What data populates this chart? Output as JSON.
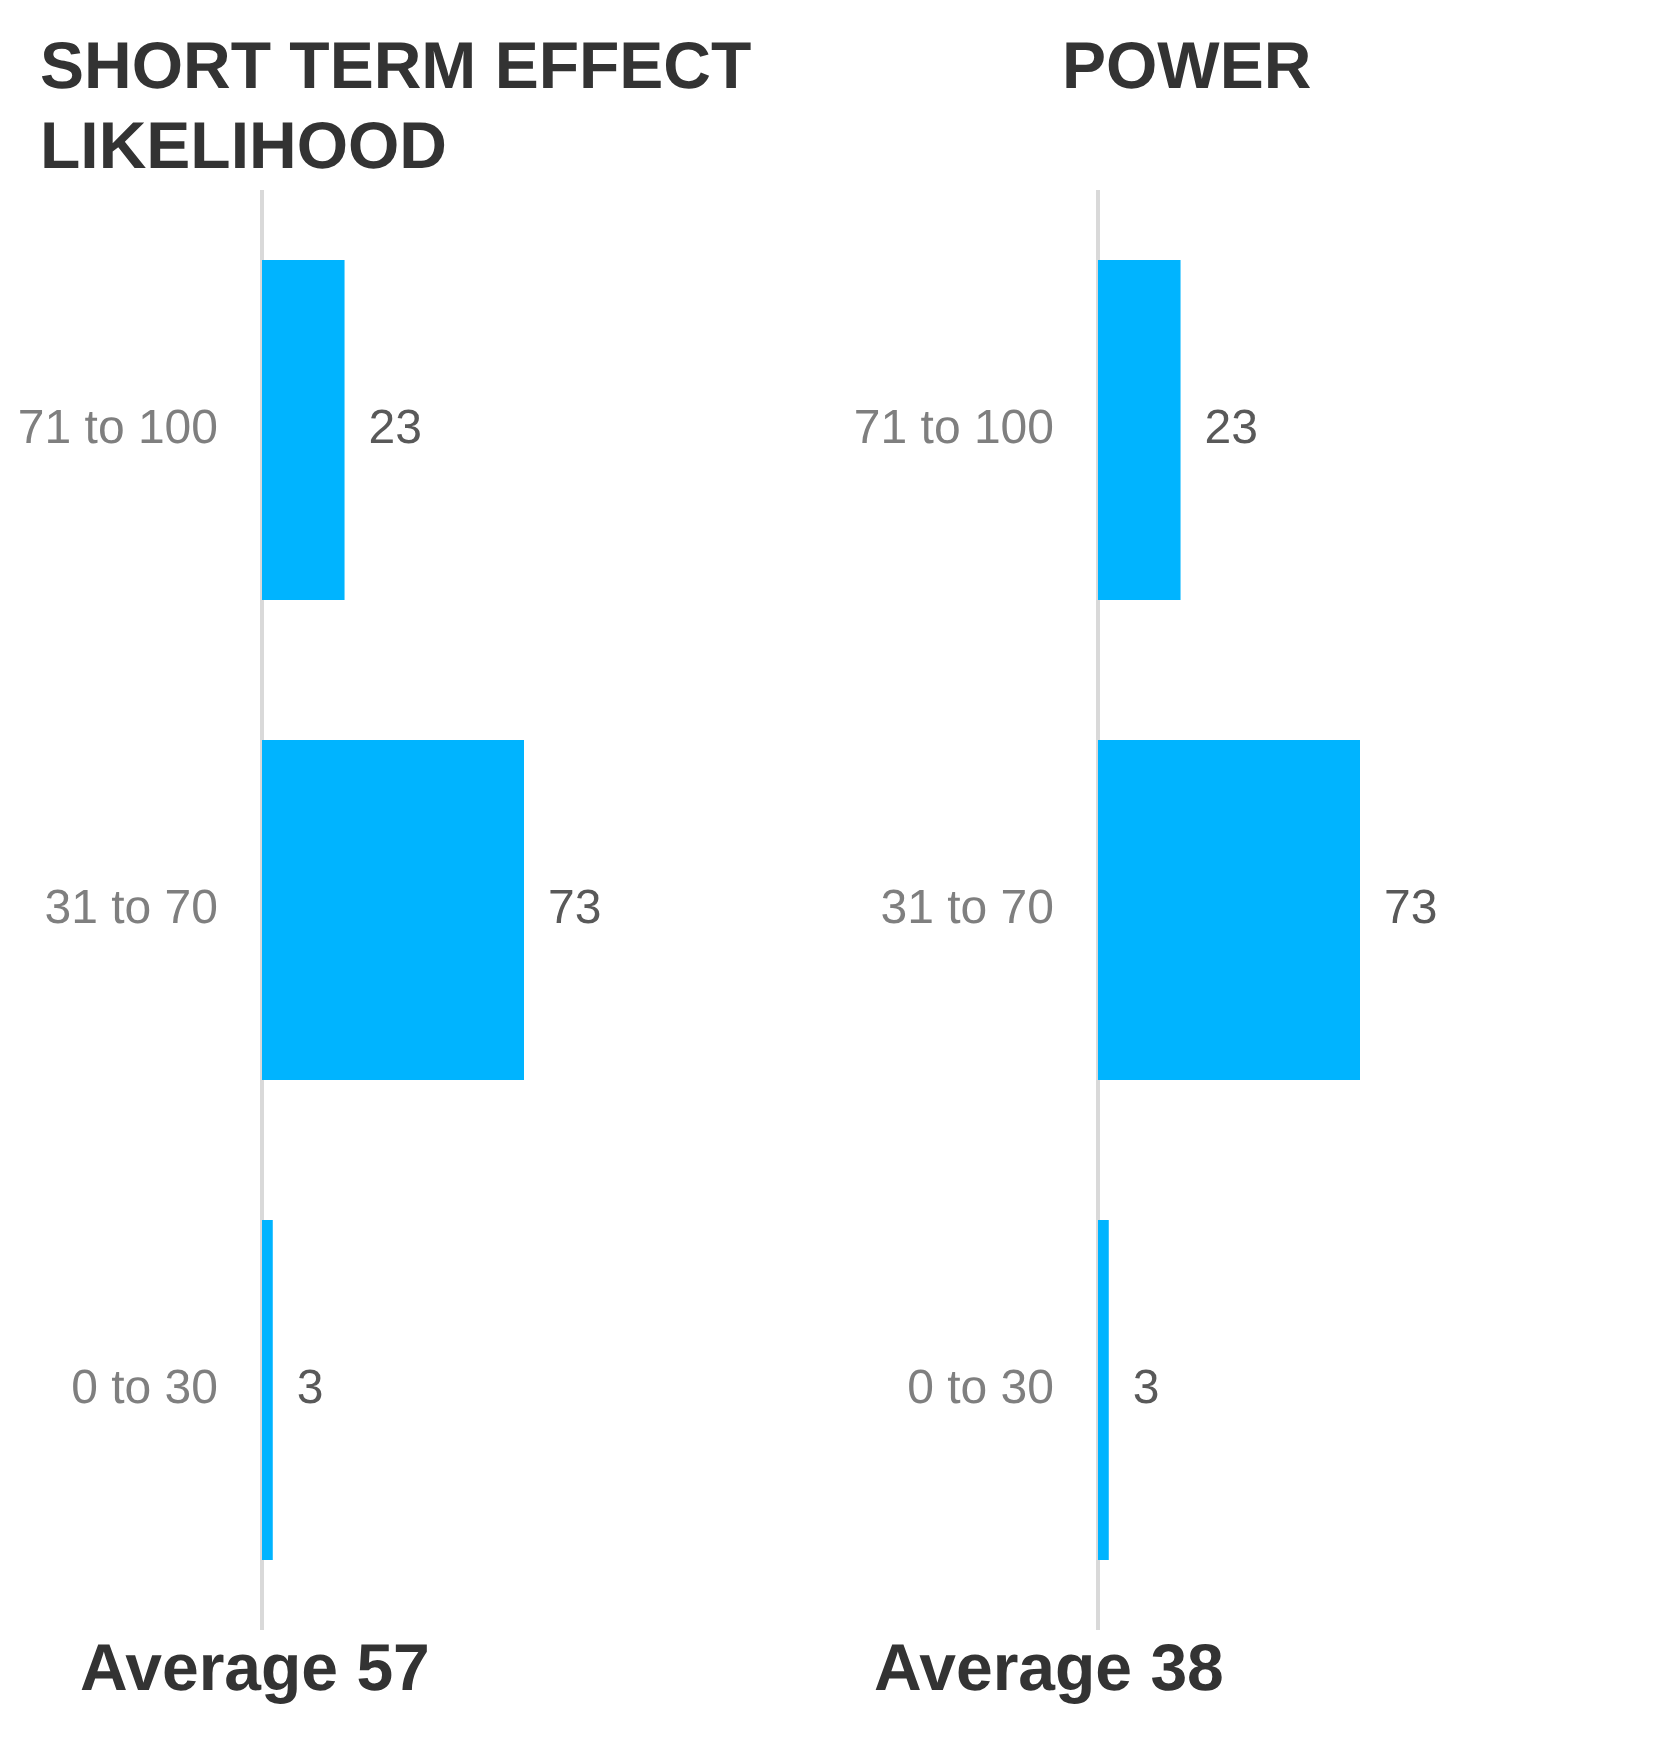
{
  "chart_data": [
    {
      "type": "bar",
      "orientation": "horizontal",
      "title": "SHORT TERM EFFECT LIKELIHOOD",
      "categories": [
        "71 to 100",
        "31 to 70",
        "0 to 30"
      ],
      "values": [
        23,
        73,
        3
      ],
      "color": "#00b4ff",
      "data_labels": true,
      "tick_labels": "y",
      "annotations": [
        "Average 57"
      ]
    },
    {
      "type": "bar",
      "orientation": "horizontal",
      "title": "POWER",
      "categories": [
        "71 to 100",
        "31 to 70",
        "0 to 30"
      ],
      "values": [
        23,
        73,
        3
      ],
      "color": "#00b4ff",
      "data_labels": true,
      "tick_labels": "y",
      "annotations": [
        "Average 38"
      ]
    }
  ]
}
